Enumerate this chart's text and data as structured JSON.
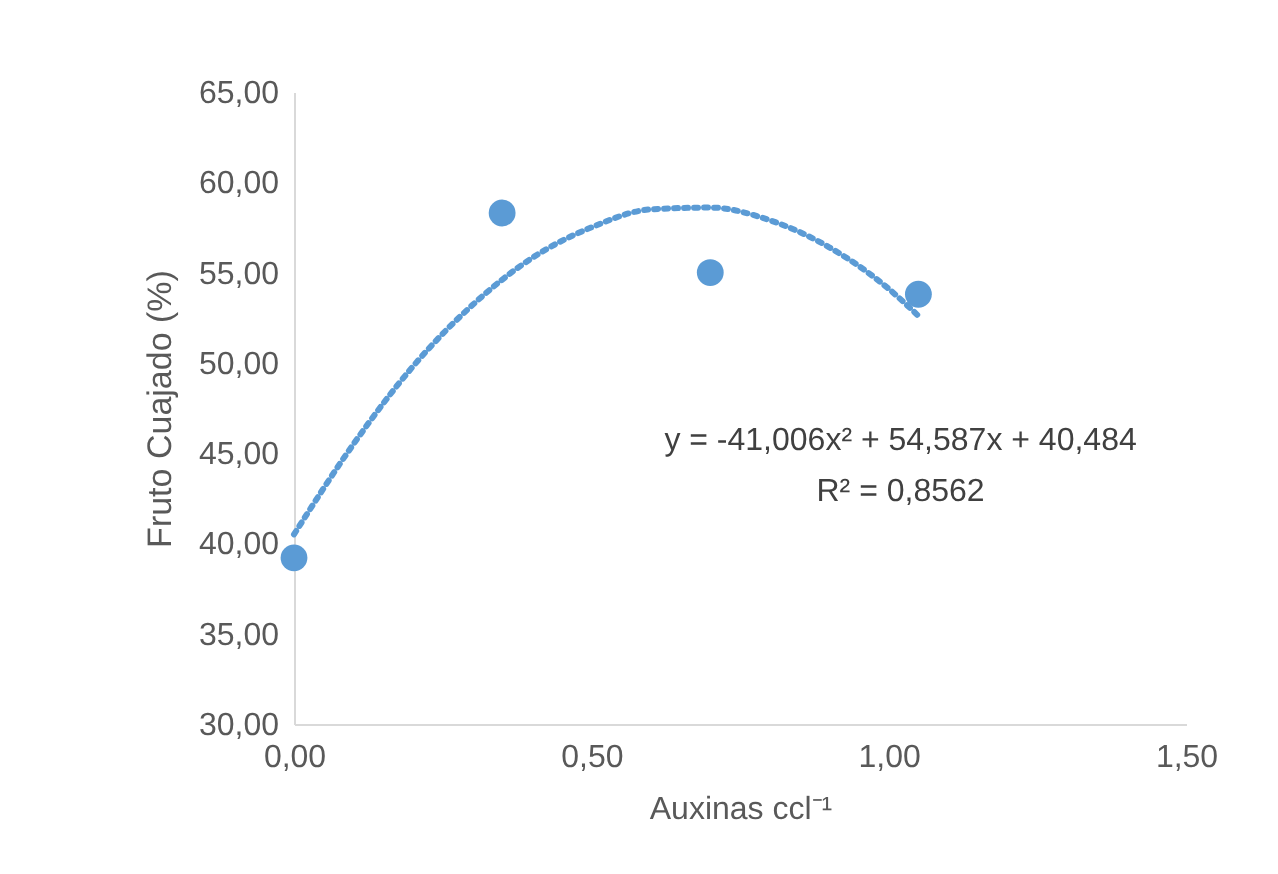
{
  "chart_data": {
    "type": "scatter",
    "xlabel": "Auxinas ccl⁻¹",
    "ylabel": "Fruto Cuajado (%)",
    "xlim": [
      0,
      1.5
    ],
    "ylim": [
      30,
      65
    ],
    "xticks": [
      {
        "value": 0,
        "label": "0,00"
      },
      {
        "value": 0.5,
        "label": "0,50"
      },
      {
        "value": 1,
        "label": "1,00"
      },
      {
        "value": 1.5,
        "label": "1,50"
      }
    ],
    "yticks": [
      {
        "value": 30,
        "label": "30,00"
      },
      {
        "value": 35,
        "label": "35,00"
      },
      {
        "value": 40,
        "label": "40,00"
      },
      {
        "value": 45,
        "label": "45,00"
      },
      {
        "value": 50,
        "label": "50,00"
      },
      {
        "value": 55,
        "label": "55,00"
      },
      {
        "value": 60,
        "label": "60,00"
      },
      {
        "value": 65,
        "label": "65,00"
      }
    ],
    "grid": false,
    "annotations": [
      "y = -41,006x² + 54,587x + 40,484",
      "R² = 0,8562"
    ],
    "series": [
      {
        "type": "line",
        "color": "#5b9bd5",
        "line_style": "dotted",
        "marker": "none",
        "x": [
          0,
          0.1,
          0.2,
          0.3,
          0.4,
          0.5,
          0.6,
          0.7,
          0.8,
          0.9,
          1.0,
          1.05
        ],
        "values": [
          40.5,
          45.5,
          49.8,
          53.2,
          55.8,
          57.5,
          58.5,
          58.6,
          57.9,
          56.4,
          54.1,
          52.6
        ]
      },
      {
        "color": "#5b9bd5",
        "marker": "circle",
        "x": [
          0,
          0.35,
          0.7,
          1.05
        ],
        "values": [
          39.2,
          58.3,
          55.0,
          53.8
        ]
      }
    ]
  }
}
